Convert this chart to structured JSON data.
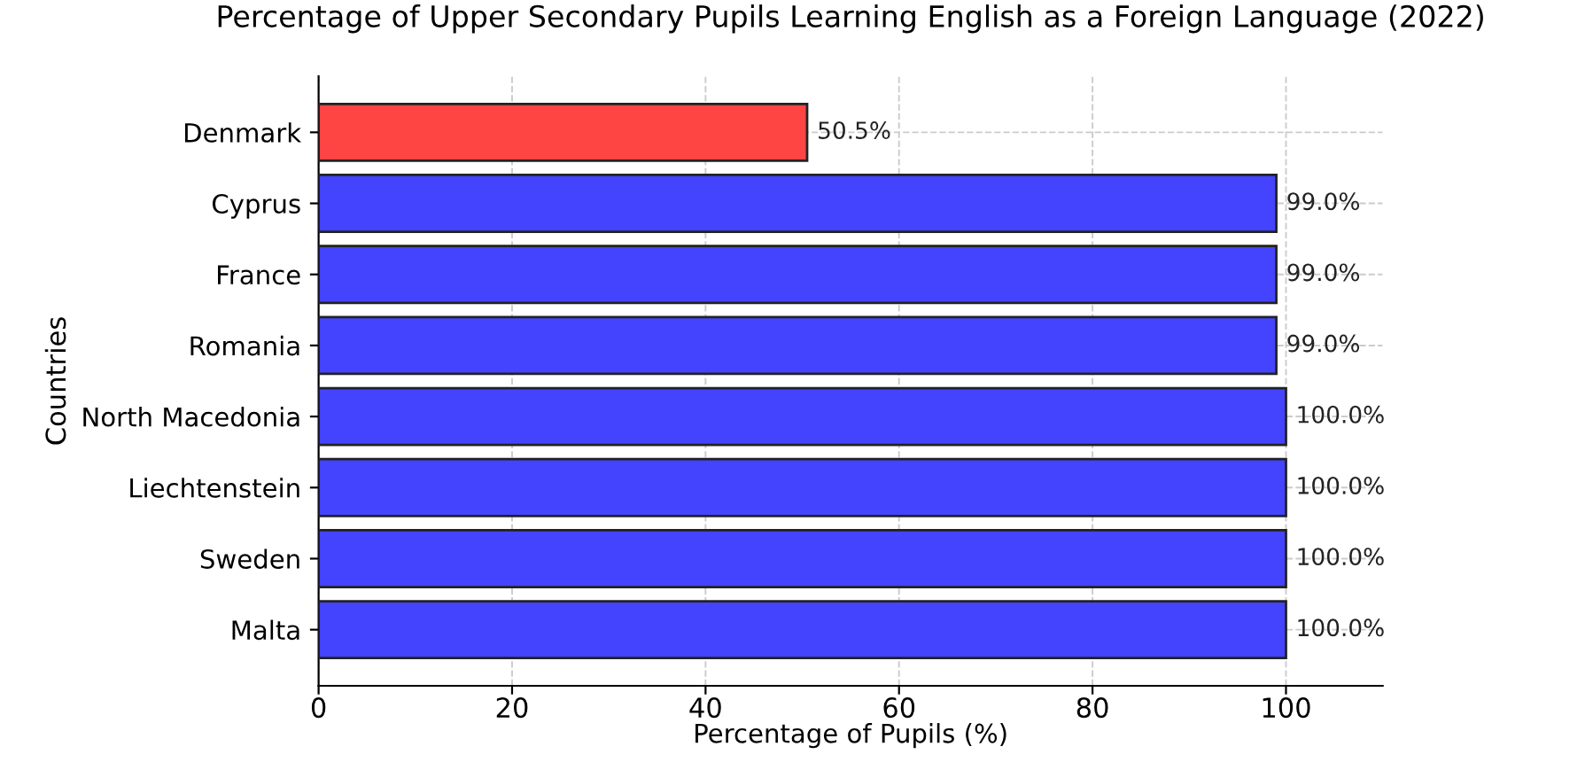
{
  "chart_data": {
    "type": "bar",
    "orientation": "horizontal",
    "title": "Percentage of Upper Secondary Pupils Learning English as a Foreign Language (2022)",
    "xlabel": "Percentage of Pupils (%)",
    "ylabel": "Countries",
    "categories": [
      "Denmark",
      "Cyprus",
      "France",
      "Romania",
      "North Macedonia",
      "Liechtenstein",
      "Sweden",
      "Malta"
    ],
    "values": [
      50.5,
      99.0,
      99.0,
      99.0,
      100.0,
      100.0,
      100.0,
      100.0
    ],
    "colors": [
      "#ff4444",
      "#4444ff",
      "#4444ff",
      "#4444ff",
      "#4444ff",
      "#4444ff",
      "#4444ff",
      "#4444ff"
    ],
    "value_labels": [
      "50.5%",
      "99.0%",
      "99.0%",
      "99.0%",
      "100.0%",
      "100.0%",
      "100.0%",
      "100.0%"
    ],
    "xlim": [
      0,
      110
    ],
    "xticks": [
      0,
      20,
      40,
      60,
      80,
      100
    ],
    "grid": true
  }
}
